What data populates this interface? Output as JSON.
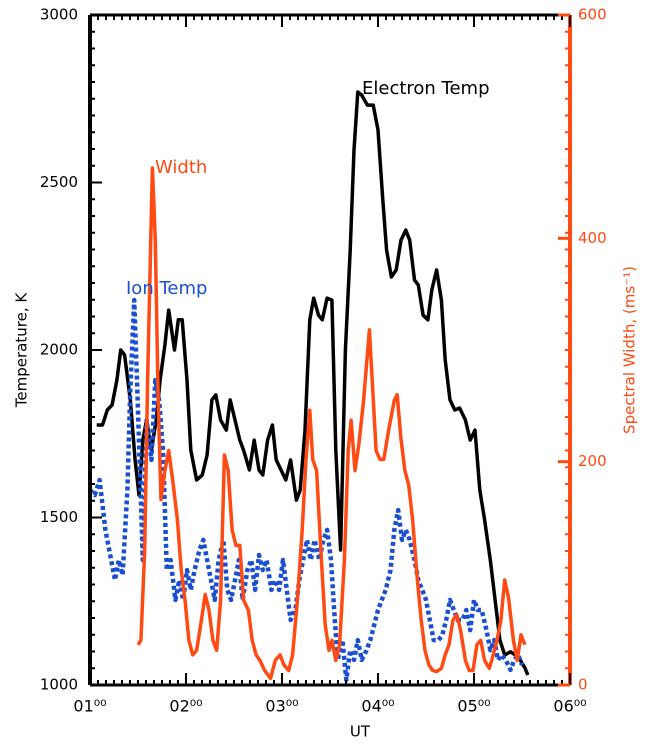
{
  "chart_data": {
    "type": "line",
    "xlabel": "UT",
    "ylabel": "Temperature, K",
    "y2label": "Spectral Width, (ms⁻¹)",
    "xlim": [
      1,
      6
    ],
    "xticks": [
      {
        "value": 1,
        "label": "01⁰⁰"
      },
      {
        "value": 2,
        "label": "02⁰⁰"
      },
      {
        "value": 3,
        "label": "03⁰⁰"
      },
      {
        "value": 4,
        "label": "04⁰⁰"
      },
      {
        "value": 5,
        "label": "05⁰⁰"
      },
      {
        "value": 6,
        "label": "06⁰⁰"
      }
    ],
    "ylim": [
      1000,
      3000
    ],
    "yticks": [
      1000,
      1500,
      2000,
      2500,
      3000
    ],
    "y2lim": [
      0,
      600
    ],
    "y2ticks": [
      0,
      200,
      400,
      600
    ],
    "series": [
      {
        "name": "Electron Temp",
        "color": "#000000",
        "x": [
          1.07,
          1.13,
          1.18,
          1.23,
          1.28,
          1.32,
          1.36,
          1.42,
          1.47,
          1.51,
          1.55,
          1.59,
          1.64,
          1.69,
          1.73,
          1.78,
          1.82,
          1.88,
          1.92,
          1.96,
          2.01,
          2.05,
          2.11,
          2.17,
          2.22,
          2.27,
          2.31,
          2.36,
          2.42,
          2.46,
          2.51,
          2.56,
          2.6,
          2.66,
          2.71,
          2.76,
          2.8,
          2.85,
          2.9,
          2.94,
          2.99,
          3.04,
          3.09,
          3.15,
          3.19,
          3.24,
          3.29,
          3.33,
          3.38,
          3.42,
          3.47,
          3.52,
          3.56,
          3.61,
          3.66,
          3.71,
          3.75,
          3.79,
          3.83,
          3.89,
          3.95,
          4.0,
          4.05,
          4.09,
          4.14,
          4.19,
          4.24,
          4.29,
          4.33,
          4.38,
          4.42,
          4.47,
          4.52,
          4.56,
          4.61,
          4.66,
          4.7,
          4.75,
          4.8,
          4.85,
          4.91,
          4.96,
          5.01,
          5.06,
          5.11,
          5.17,
          5.22,
          5.27,
          5.32,
          5.38,
          5.43,
          5.48,
          5.53,
          5.56
        ],
        "values": [
          1776,
          1776,
          1821,
          1836,
          1910,
          2000,
          1985,
          1851,
          1672,
          1567,
          1731,
          1791,
          1701,
          1791,
          1910,
          2015,
          2119,
          2000,
          2090,
          2090,
          1910,
          1701,
          1612,
          1627,
          1687,
          1851,
          1866,
          1791,
          1761,
          1851,
          1791,
          1731,
          1701,
          1642,
          1731,
          1642,
          1627,
          1731,
          1776,
          1672,
          1642,
          1612,
          1672,
          1552,
          1582,
          1761,
          2090,
          2155,
          2104,
          2090,
          2155,
          2149,
          1701,
          1403,
          2000,
          2298,
          2597,
          2770,
          2761,
          2731,
          2731,
          2657,
          2448,
          2298,
          2218,
          2239,
          2328,
          2358,
          2328,
          2209,
          2194,
          2104,
          2090,
          2179,
          2239,
          2149,
          1970,
          1851,
          1821,
          1827,
          1791,
          1731,
          1761,
          1582,
          1493,
          1373,
          1254,
          1134,
          1090,
          1099,
          1090,
          1075,
          1051,
          1030
        ]
      },
      {
        "name": "Ion Temp",
        "color": "#1a4fd1",
        "x": [
          1.0,
          1.05,
          1.1,
          1.16,
          1.21,
          1.26,
          1.3,
          1.34,
          1.39,
          1.42,
          1.46,
          1.49,
          1.52,
          1.55,
          1.59,
          1.64,
          1.68,
          1.72,
          1.76,
          1.8,
          1.84,
          1.89,
          1.93,
          1.97,
          2.01,
          2.05,
          2.09,
          2.14,
          2.18,
          2.22,
          2.26,
          2.3,
          2.34,
          2.39,
          2.43,
          2.47,
          2.51,
          2.55,
          2.59,
          2.64,
          2.68,
          2.72,
          2.76,
          2.8,
          2.84,
          2.89,
          2.93,
          2.97,
          3.01,
          3.05,
          3.09,
          3.14,
          3.18,
          3.22,
          3.26,
          3.3,
          3.34,
          3.39,
          3.43,
          3.47,
          3.51,
          3.55,
          3.58,
          3.63,
          3.67,
          3.71,
          3.75,
          3.79,
          3.83,
          3.88,
          3.92,
          3.96,
          4.0,
          4.04,
          4.08,
          4.13,
          4.17,
          4.21,
          4.25,
          4.29,
          4.33,
          4.38,
          4.42,
          4.46,
          4.5,
          4.54,
          4.58,
          4.63,
          4.67,
          4.71,
          4.75,
          4.79,
          4.83,
          4.88,
          4.92,
          4.96,
          5.0,
          5.04,
          5.08,
          5.13,
          5.17,
          5.21,
          5.25,
          5.29,
          5.33,
          5.38,
          5.42,
          5.46,
          5.5
        ],
        "values": [
          1582,
          1567,
          1612,
          1463,
          1388,
          1313,
          1373,
          1328,
          1582,
          1881,
          2149,
          1910,
          1642,
          1373,
          1791,
          1672,
          1910,
          1851,
          1701,
          1343,
          1373,
          1254,
          1313,
          1254,
          1343,
          1284,
          1343,
          1403,
          1433,
          1373,
          1313,
          1254,
          1373,
          1433,
          1284,
          1254,
          1313,
          1373,
          1254,
          1343,
          1373,
          1284,
          1388,
          1343,
          1373,
          1284,
          1313,
          1284,
          1373,
          1284,
          1194,
          1224,
          1313,
          1373,
          1433,
          1373,
          1433,
          1373,
          1433,
          1463,
          1373,
          1194,
          1075,
          1134,
          1015,
          1104,
          1075,
          1134,
          1075,
          1104,
          1134,
          1179,
          1224,
          1254,
          1284,
          1343,
          1463,
          1522,
          1433,
          1463,
          1433,
          1373,
          1313,
          1284,
          1254,
          1194,
          1134,
          1134,
          1149,
          1194,
          1254,
          1224,
          1194,
          1194,
          1224,
          1164,
          1254,
          1224,
          1224,
          1164,
          1104,
          1134,
          1075,
          1090,
          1075,
          1045,
          1075,
          1090,
          1060
        ]
      },
      {
        "name": "Width",
        "color": "#ff4a14",
        "axis": "y2",
        "x": [
          1.5,
          1.53,
          1.57,
          1.6,
          1.65,
          1.68,
          1.71,
          1.74,
          1.78,
          1.82,
          1.86,
          1.91,
          1.95,
          1.99,
          2.03,
          2.07,
          2.11,
          2.16,
          2.2,
          2.24,
          2.28,
          2.32,
          2.36,
          2.4,
          2.44,
          2.48,
          2.52,
          2.56,
          2.6,
          2.65,
          2.69,
          2.73,
          2.77,
          2.82,
          2.88,
          2.93,
          2.98,
          3.02,
          3.07,
          3.11,
          3.16,
          3.21,
          3.25,
          3.29,
          3.32,
          3.36,
          3.41,
          3.45,
          3.49,
          3.52,
          3.56,
          3.6,
          3.65,
          3.69,
          3.72,
          3.76,
          3.8,
          3.85,
          3.91,
          3.94,
          3.98,
          4.02,
          4.06,
          4.11,
          4.17,
          4.2,
          4.24,
          4.28,
          4.32,
          4.36,
          4.41,
          4.45,
          4.49,
          4.53,
          4.57,
          4.61,
          4.66,
          4.7,
          4.74,
          4.78,
          4.82,
          4.86,
          4.91,
          4.95,
          4.99,
          5.03,
          5.07,
          5.11,
          5.16,
          5.2,
          5.24,
          5.28,
          5.32,
          5.36,
          5.41,
          5.45,
          5.49,
          5.53
        ],
        "values": [
          36,
          40,
          121,
          273,
          463,
          398,
          255,
          166,
          192,
          210,
          184,
          148,
          103,
          76,
          40,
          27,
          31,
          58,
          81,
          67,
          40,
          31,
          76,
          206,
          192,
          139,
          125,
          125,
          76,
          67,
          40,
          27,
          22,
          13,
          6,
          22,
          27,
          18,
          13,
          27,
          76,
          139,
          202,
          246,
          202,
          192,
          112,
          54,
          31,
          40,
          22,
          36,
          112,
          210,
          237,
          192,
          215,
          255,
          318,
          273,
          210,
          202,
          202,
          228,
          255,
          260,
          220,
          192,
          179,
          148,
          94,
          58,
          31,
          18,
          13,
          12,
          15,
          27,
          36,
          58,
          63,
          49,
          22,
          13,
          13,
          36,
          40,
          22,
          15,
          27,
          40,
          58,
          94,
          78,
          40,
          22,
          45,
          36
        ]
      }
    ]
  }
}
